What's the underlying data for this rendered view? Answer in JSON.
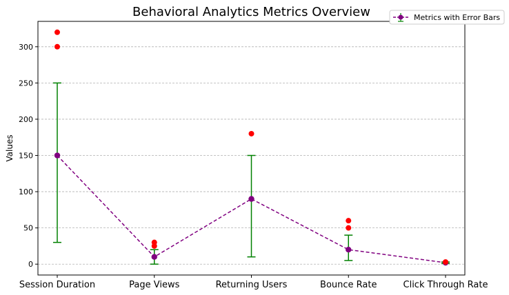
{
  "chart_data": {
    "type": "line",
    "title": "Behavioral Analytics Metrics Overview",
    "xlabel": "",
    "ylabel": "Values",
    "categories": [
      "Session Duration",
      "Page Views",
      "Returning Users",
      "Bounce Rate",
      "Click Through Rate"
    ],
    "ylim": [
      -15,
      335
    ],
    "yticks": [
      0,
      50,
      100,
      150,
      200,
      250,
      300
    ],
    "grid": "y-dashed",
    "legend_position": "top-right",
    "series": [
      {
        "name": "Metrics with Error Bars",
        "values": [
          150,
          10,
          90,
          20,
          2
        ],
        "error_low": [
          30,
          0,
          10,
          5,
          1
        ],
        "error_high": [
          250,
          20,
          150,
          40,
          3
        ],
        "line_color": "#800080",
        "marker_color": "#800080",
        "errorbar_color": "#008000",
        "line_style": "dashed"
      }
    ],
    "outliers": [
      {
        "category": "Session Duration",
        "values": [
          300,
          320
        ]
      },
      {
        "category": "Page Views",
        "values": [
          25,
          30
        ]
      },
      {
        "category": "Returning Users",
        "values": [
          180
        ]
      },
      {
        "category": "Bounce Rate",
        "values": [
          50,
          60
        ]
      },
      {
        "category": "Click Through Rate",
        "values": [
          3
        ]
      }
    ],
    "outlier_color": "#ff0000"
  }
}
